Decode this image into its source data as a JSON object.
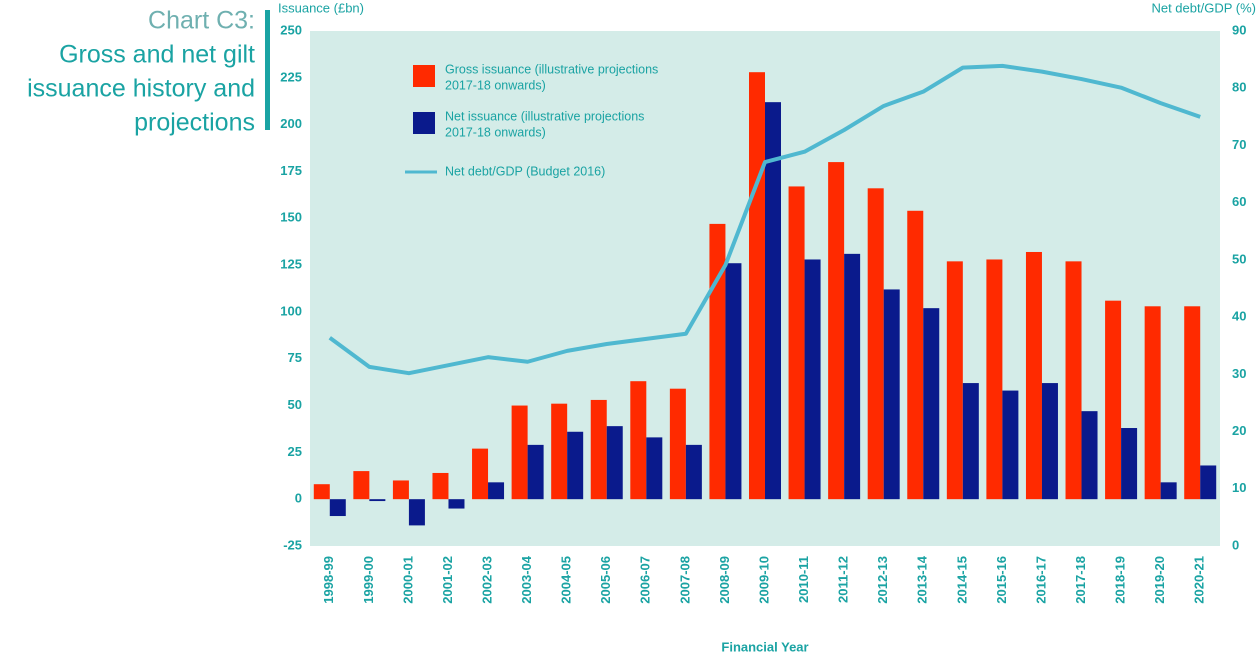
{
  "chart_data": {
    "type": "bar-line",
    "label": "Chart C3:",
    "title_lines": [
      "Gross and net gilt",
      "issuance history and",
      "projections"
    ],
    "y_label": "Issuance (£bn)",
    "y2_label": "Net debt/GDP (%)",
    "x_label": "Financial Year",
    "categories": [
      "1998-99",
      "1999-00",
      "2000-01",
      "2001-02",
      "2002-03",
      "2003-04",
      "2004-05",
      "2005-06",
      "2006-07",
      "2007-08",
      "2008-09",
      "2009-10",
      "2010-11",
      "2011-12",
      "2012-13",
      "2013-14",
      "2014-15",
      "2015-16",
      "2016-17",
      "2017-18",
      "2018-19",
      "2019-20",
      "2020-21"
    ],
    "series": [
      {
        "name": "Gross issuance (illustrative projections 2017-18 onwards)",
        "legend_lines": [
          "Gross issuance (illustrative projections",
          "2017-18 onwards)"
        ],
        "type": "bar",
        "color": "#ff2a00",
        "values": [
          8,
          15,
          10,
          14,
          27,
          50,
          51,
          53,
          63,
          59,
          147,
          228,
          167,
          180,
          166,
          154,
          127,
          128,
          132,
          127,
          106,
          103,
          103
        ]
      },
      {
        "name": "Net issuance (illustrative projections 2017-18 onwards)",
        "legend_lines": [
          "Net issuance (illustrative projections",
          "2017-18 onwards)"
        ],
        "type": "bar",
        "color": "#0a1a8c",
        "values": [
          -9,
          -1,
          -14,
          -5,
          9,
          29,
          36,
          39,
          33,
          29,
          126,
          212,
          128,
          131,
          112,
          102,
          62,
          58,
          62,
          47,
          38,
          9,
          18
        ]
      },
      {
        "name": "Net debt/GDP (Budget 2016)",
        "type": "line",
        "axis": "y2",
        "color": "#4fb8d0",
        "values": [
          36.4,
          31.3,
          30.2,
          31.6,
          33,
          32.2,
          34.1,
          35.3,
          36.2,
          37.1,
          49.1,
          67.1,
          68.9,
          72.7,
          76.9,
          79.4,
          83.6,
          83.9,
          82.9,
          81.6,
          80.1,
          77.4,
          75
        ]
      }
    ],
    "ylim": [
      -25,
      250
    ],
    "yticks": [
      -25,
      0,
      25,
      50,
      75,
      100,
      125,
      150,
      175,
      200,
      225,
      250
    ],
    "y2lim": [
      0,
      90
    ],
    "y2ticks": [
      0,
      10,
      20,
      30,
      40,
      50,
      60,
      70,
      80,
      90
    ]
  }
}
